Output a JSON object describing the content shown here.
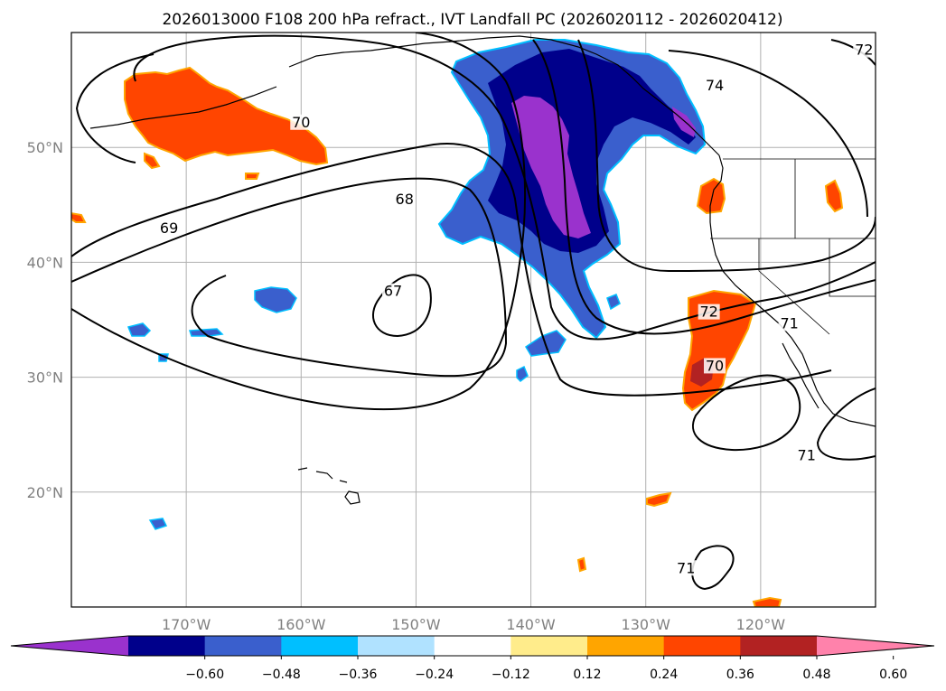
{
  "title": "2026013000 F108 200 hPa refract., IVT Landfall PC (2026020112 - 2026020412)",
  "map": {
    "lon_range": [
      -180,
      -110
    ],
    "lat_range": [
      10,
      60
    ],
    "lon_ticks": [
      {
        "lon": -170,
        "label": "170°W"
      },
      {
        "lon": -160,
        "label": "160°W"
      },
      {
        "lon": -150,
        "label": "150°W"
      },
      {
        "lon": -140,
        "label": "140°W"
      },
      {
        "lon": -130,
        "label": "130°W"
      },
      {
        "lon": -120,
        "label": "120°W"
      }
    ],
    "lat_ticks": [
      {
        "lat": 50,
        "label": "50°N"
      },
      {
        "lat": 40,
        "label": "40°N"
      },
      {
        "lat": 30,
        "label": "30°N"
      },
      {
        "lat": 20,
        "label": "20°N"
      }
    ],
    "contour_labels": [
      {
        "text": "70",
        "lon": -160,
        "lat": 52
      },
      {
        "text": "69",
        "lon": -171.5,
        "lat": 42.8
      },
      {
        "text": "68",
        "lon": -151,
        "lat": 45.3
      },
      {
        "text": "67",
        "lon": -152,
        "lat": 37.3
      },
      {
        "text": "74",
        "lon": -124,
        "lat": 55.2
      },
      {
        "text": "72",
        "lon": -124.5,
        "lat": 35.5
      },
      {
        "text": "70",
        "lon": -124,
        "lat": 30.8
      },
      {
        "text": "71",
        "lon": -117.5,
        "lat": 34.5
      },
      {
        "text": "71",
        "lon": -116,
        "lat": 23
      },
      {
        "text": "71",
        "lon": -126.5,
        "lat": 13.2
      },
      {
        "text": "72",
        "lon": -111,
        "lat": 58.3
      }
    ]
  },
  "colorbar": {
    "colors": [
      "#9a32cd",
      "#00008b",
      "#3a5fcd",
      "#00bfff",
      "#b0e2ff",
      "#ffffff",
      "#ffec8b",
      "#ffa500",
      "#ff4500",
      "#b22222",
      "#ff82ab"
    ],
    "tick_labels": [
      "−0.60",
      "−0.48",
      "−0.36",
      "−0.24",
      "−0.12",
      "0.12",
      "0.24",
      "0.36",
      "0.48",
      "0.60"
    ]
  },
  "colors": {
    "axis_tick_label": "#808080",
    "gridline": "#b0b0b0",
    "coastline": "#000000"
  }
}
